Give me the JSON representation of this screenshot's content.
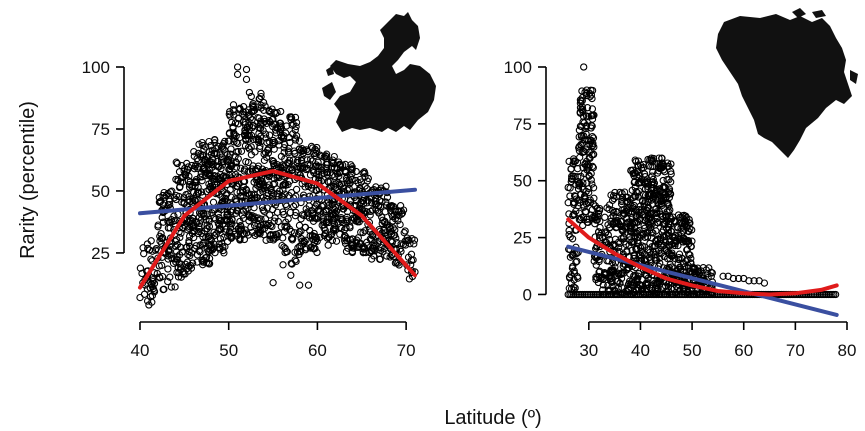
{
  "figure": {
    "shared_xlabel": "Latitude (º)",
    "shared_ylabel": "Rarity  (percentile)"
  },
  "chart_data": [
    {
      "type": "scatter",
      "panel": "Europe",
      "map_icon": "europe-map-icon",
      "xlabel": "Latitude (º)",
      "ylabel": "Rarity  (percentile)",
      "xlim": [
        40,
        71
      ],
      "ylim": [
        4,
        100
      ],
      "xticks": [
        40,
        50,
        60,
        70
      ],
      "yticks": [
        25,
        50,
        75,
        100
      ],
      "grid": false,
      "point_marker": "open-circle",
      "colors": {
        "points": "#000000",
        "linear_fit": "#3a4fa0",
        "quadratic_fit": "#e01b1b"
      },
      "clusters": [
        {
          "x": [
            40,
            42
          ],
          "y": [
            5,
            30
          ],
          "n": 40
        },
        {
          "x": [
            42,
            44
          ],
          "y": [
            10,
            50
          ],
          "n": 80
        },
        {
          "x": [
            44,
            46
          ],
          "y": [
            15,
            62
          ],
          "n": 120
        },
        {
          "x": [
            46,
            48
          ],
          "y": [
            20,
            70
          ],
          "n": 140
        },
        {
          "x": [
            48,
            50
          ],
          "y": [
            25,
            72
          ],
          "n": 140
        },
        {
          "x": [
            50,
            52
          ],
          "y": [
            30,
            85
          ],
          "n": 150
        },
        {
          "x": [
            52,
            54
          ],
          "y": [
            32,
            90
          ],
          "n": 150
        },
        {
          "x": [
            54,
            56
          ],
          "y": [
            30,
            85
          ],
          "n": 130
        },
        {
          "x": [
            56,
            58
          ],
          "y": [
            20,
            80
          ],
          "n": 120
        },
        {
          "x": [
            58,
            60
          ],
          "y": [
            25,
            68
          ],
          "n": 110
        },
        {
          "x": [
            60,
            62
          ],
          "y": [
            28,
            65
          ],
          "n": 110
        },
        {
          "x": [
            62,
            64
          ],
          "y": [
            25,
            62
          ],
          "n": 100
        },
        {
          "x": [
            64,
            66
          ],
          "y": [
            25,
            58
          ],
          "n": 90
        },
        {
          "x": [
            66,
            68
          ],
          "y": [
            22,
            52
          ],
          "n": 80
        },
        {
          "x": [
            68,
            70
          ],
          "y": [
            20,
            45
          ],
          "n": 60
        },
        {
          "x": [
            70,
            71
          ],
          "y": [
            14,
            32
          ],
          "n": 20
        }
      ],
      "extra_points": [
        [
          51,
          100
        ],
        [
          52,
          99
        ],
        [
          51,
          97
        ],
        [
          52,
          95
        ],
        [
          57,
          16
        ],
        [
          58,
          12
        ],
        [
          59,
          12
        ],
        [
          55,
          13
        ],
        [
          41,
          4
        ],
        [
          40,
          7
        ]
      ],
      "series": [
        {
          "kind": "linear",
          "x": [
            40,
            71
          ],
          "y": [
            41,
            50.5
          ]
        },
        {
          "kind": "quadratic",
          "x": [
            40,
            45,
            50,
            55,
            60,
            65,
            71
          ],
          "y": [
            11,
            40,
            54,
            58,
            53,
            40,
            16
          ]
        }
      ]
    },
    {
      "type": "scatter",
      "panel": "North America",
      "map_icon": "north-america-map-icon",
      "xlabel": "Latitude (º)",
      "ylabel": "Rarity  (percentile)",
      "xlim": [
        25,
        80
      ],
      "ylim": [
        -2,
        100
      ],
      "xticks": [
        30,
        40,
        50,
        60,
        70,
        80
      ],
      "yticks": [
        0,
        25,
        50,
        75,
        100
      ],
      "grid": false,
      "point_marker": "open-circle",
      "colors": {
        "points": "#000000",
        "linear_fit": "#3a4fa0",
        "quadratic_fit": "#e01b1b"
      },
      "clusters": [
        {
          "x": [
            26,
            28
          ],
          "y": [
            0,
            60
          ],
          "n": 70
        },
        {
          "x": [
            28,
            31
          ],
          "y": [
            30,
            90
          ],
          "n": 140
        },
        {
          "x": [
            31,
            34
          ],
          "y": [
            0,
            40
          ],
          "n": 70
        },
        {
          "x": [
            34,
            38
          ],
          "y": [
            0,
            45
          ],
          "n": 160
        },
        {
          "x": [
            38,
            42
          ],
          "y": [
            0,
            60
          ],
          "n": 220
        },
        {
          "x": [
            42,
            46
          ],
          "y": [
            0,
            60
          ],
          "n": 240
        },
        {
          "x": [
            46,
            50
          ],
          "y": [
            0,
            35
          ],
          "n": 150
        },
        {
          "x": [
            50,
            54
          ],
          "y": [
            0,
            12
          ],
          "n": 60
        }
      ],
      "extra_points": [
        [
          29,
          100
        ],
        [
          26,
          47
        ],
        [
          27,
          52
        ],
        [
          56,
          8
        ],
        [
          57,
          8
        ],
        [
          58,
          7
        ],
        [
          59,
          7
        ],
        [
          60,
          7
        ],
        [
          61,
          6
        ],
        [
          62,
          6
        ],
        [
          63,
          6
        ],
        [
          64,
          5
        ]
      ],
      "baseline_band": {
        "x": [
          26,
          78
        ],
        "y": 0
      },
      "series": [
        {
          "kind": "linear",
          "x": [
            26,
            78
          ],
          "y": [
            21,
            -9
          ]
        },
        {
          "kind": "quadratic",
          "x": [
            26,
            30,
            35,
            40,
            45,
            50,
            55,
            60,
            65,
            70,
            75,
            78
          ],
          "y": [
            33,
            25,
            18,
            12,
            7,
            4,
            1.5,
            0.5,
            0,
            0.5,
            2,
            4
          ]
        }
      ]
    }
  ]
}
